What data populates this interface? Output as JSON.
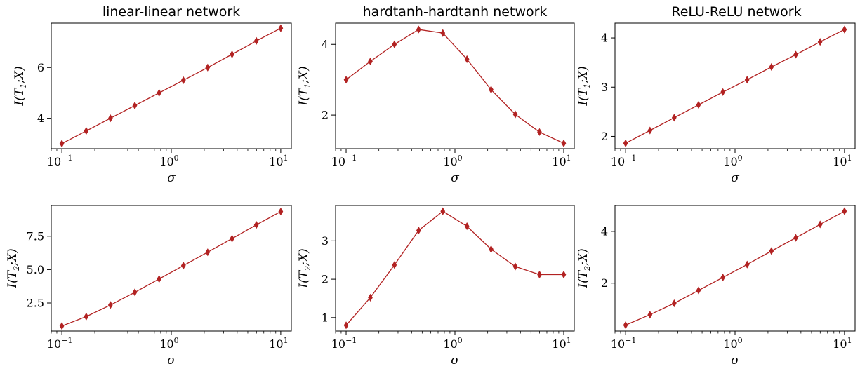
{
  "figure": {
    "titles": [
      "linear-linear network",
      "hardtanh-hardtanh network",
      "ReLU-ReLU network"
    ]
  },
  "colors": {
    "series": "#b22222",
    "axis": "#000000",
    "background": "#ffffff"
  },
  "chart_data": [
    {
      "type": "line",
      "title": "linear-linear network",
      "xlabel": "σ",
      "ylabel": "I(T1;X)",
      "xscale": "log",
      "x": [
        0.1,
        0.167,
        0.278,
        0.464,
        0.774,
        1.29,
        2.15,
        3.59,
        5.99,
        10
      ],
      "series": [
        {
          "values": [
            3.0,
            3.5,
            4.0,
            4.5,
            5.0,
            5.5,
            6.0,
            6.52,
            7.05,
            7.55
          ]
        }
      ],
      "ylim": [
        2.8,
        7.75
      ],
      "yticks": [
        4,
        6
      ],
      "xlim": [
        0.08,
        12.5
      ],
      "grid": false
    },
    {
      "type": "line",
      "title": "hardtanh-hardtanh network",
      "xlabel": "σ",
      "ylabel": "I(T1;X)",
      "xscale": "log",
      "x": [
        0.1,
        0.167,
        0.278,
        0.464,
        0.774,
        1.29,
        2.15,
        3.59,
        5.99,
        10
      ],
      "series": [
        {
          "values": [
            3.0,
            3.52,
            4.0,
            4.42,
            4.32,
            3.58,
            2.72,
            2.02,
            1.52,
            1.2
          ]
        }
      ],
      "ylim": [
        1.05,
        4.6
      ],
      "yticks": [
        2,
        4
      ],
      "xlim": [
        0.08,
        12.5
      ],
      "grid": false
    },
    {
      "type": "line",
      "title": "ReLU-ReLU network",
      "xlabel": "σ",
      "ylabel": "I(T1;X)",
      "xscale": "log",
      "x": [
        0.1,
        0.167,
        0.278,
        0.464,
        0.774,
        1.29,
        2.15,
        3.59,
        5.99,
        10
      ],
      "series": [
        {
          "values": [
            1.86,
            2.12,
            2.38,
            2.64,
            2.9,
            3.15,
            3.41,
            3.66,
            3.92,
            4.17
          ]
        }
      ],
      "ylim": [
        1.75,
        4.3
      ],
      "yticks": [
        2,
        3,
        4
      ],
      "xlim": [
        0.08,
        12.5
      ],
      "grid": false
    },
    {
      "type": "line",
      "title": "",
      "xlabel": "σ",
      "ylabel": "I(T2;X)",
      "xscale": "log",
      "x": [
        0.1,
        0.167,
        0.278,
        0.464,
        0.774,
        1.29,
        2.15,
        3.59,
        5.99,
        10
      ],
      "series": [
        {
          "values": [
            0.78,
            1.48,
            2.35,
            3.3,
            4.3,
            5.3,
            6.3,
            7.32,
            8.35,
            9.35
          ]
        }
      ],
      "ylim": [
        0.4,
        9.8
      ],
      "yticks": [
        2.5,
        5.0,
        7.5
      ],
      "ytickLabels": [
        "2.5",
        "5.0",
        "7.5"
      ],
      "xlim": [
        0.08,
        12.5
      ],
      "grid": false
    },
    {
      "type": "line",
      "title": "",
      "xlabel": "σ",
      "ylabel": "I(T2;X)",
      "xscale": "log",
      "x": [
        0.1,
        0.167,
        0.278,
        0.464,
        0.774,
        1.29,
        2.15,
        3.59,
        5.99,
        10
      ],
      "series": [
        {
          "values": [
            0.8,
            1.52,
            2.37,
            3.27,
            3.77,
            3.38,
            2.78,
            2.33,
            2.12,
            2.12
          ]
        }
      ],
      "ylim": [
        0.65,
        3.92
      ],
      "yticks": [
        1,
        2,
        3
      ],
      "xlim": [
        0.08,
        12.5
      ],
      "grid": false
    },
    {
      "type": "line",
      "title": "",
      "xlabel": "σ",
      "ylabel": "I(T2;X)",
      "xscale": "log",
      "x": [
        0.1,
        0.167,
        0.278,
        0.464,
        0.774,
        1.29,
        2.15,
        3.59,
        5.99,
        10
      ],
      "series": [
        {
          "values": [
            0.38,
            0.78,
            1.22,
            1.72,
            2.22,
            2.72,
            3.24,
            3.75,
            4.27,
            4.78
          ]
        }
      ],
      "ylim": [
        0.15,
        5.0
      ],
      "yticks": [
        2,
        4
      ],
      "xlim": [
        0.08,
        12.5
      ],
      "grid": false
    }
  ]
}
